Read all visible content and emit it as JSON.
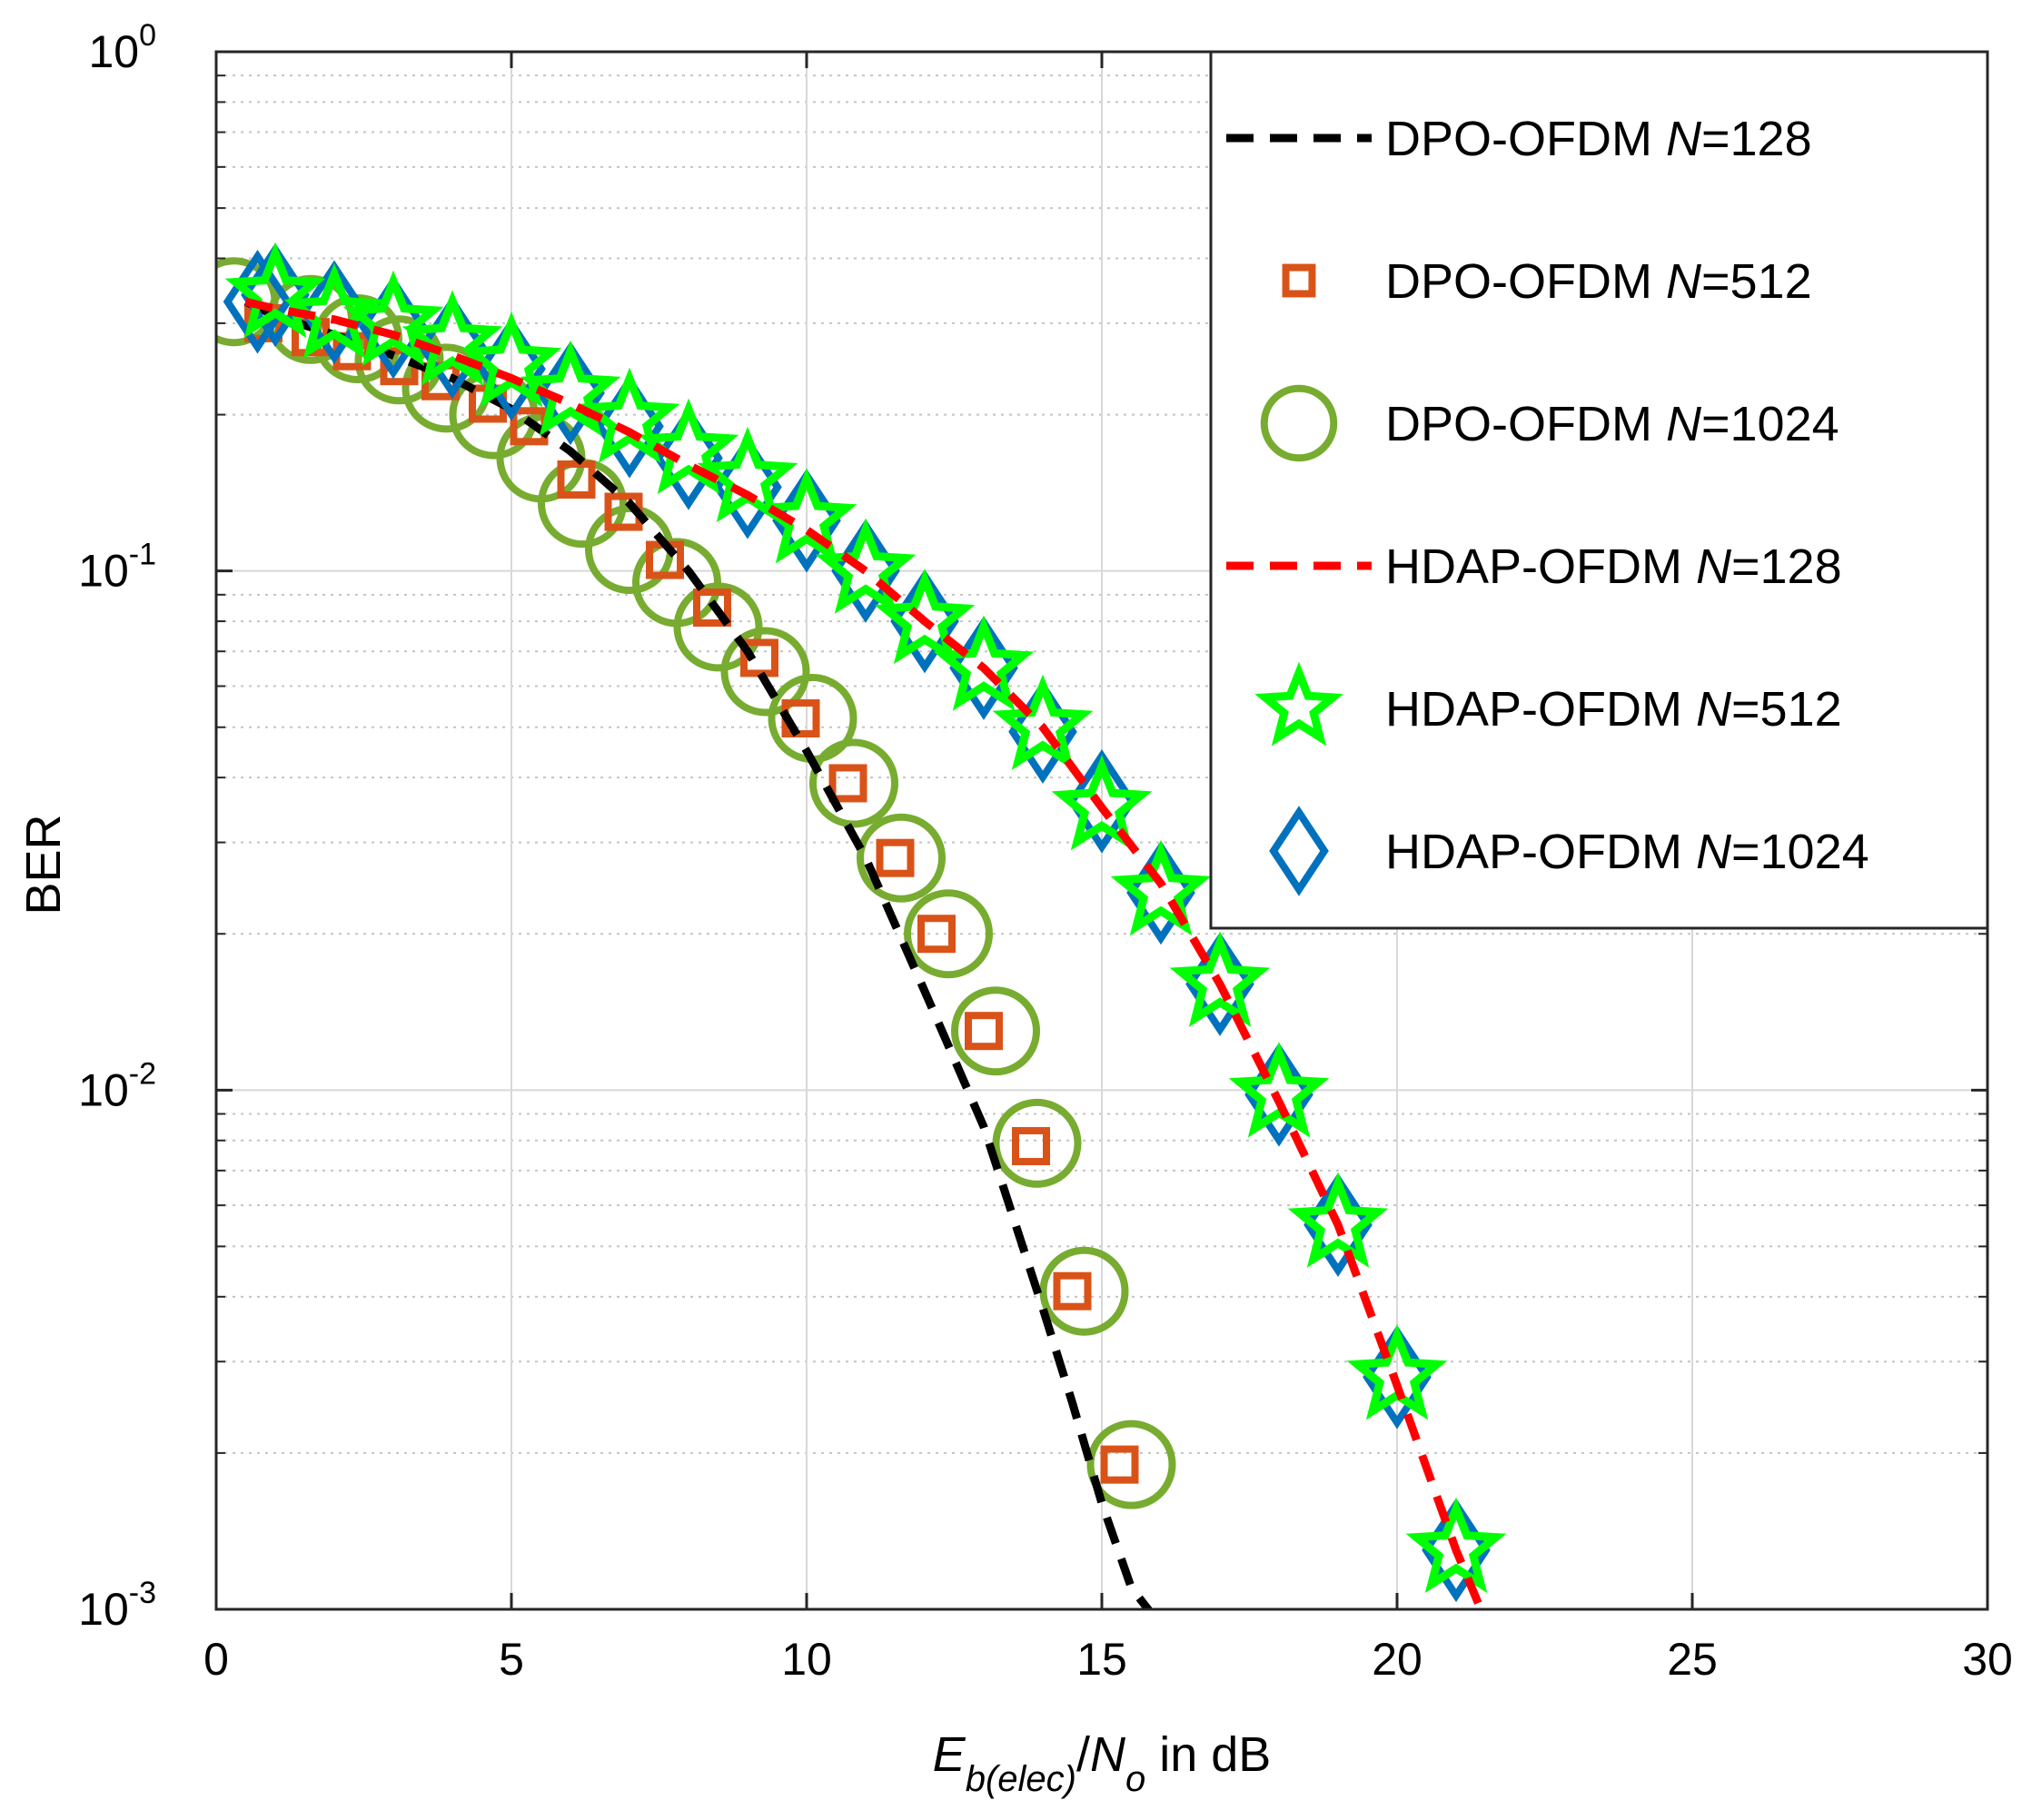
{
  "chart_data": {
    "type": "line",
    "xlabel": {
      "main": "E",
      "sub1": "b(elec)",
      "slash": "/",
      "main2": "N",
      "sub2": "o",
      "suffix": " in dB"
    },
    "ylabel": "BER",
    "xlim": [
      0,
      30
    ],
    "ylim": [
      0.001,
      1
    ],
    "yscale": "log",
    "grid": true,
    "legend_location": "top-right",
    "x_ticks": [
      0,
      5,
      10,
      15,
      20,
      25,
      30
    ],
    "x_tick_labels": [
      "0",
      "5",
      "10",
      "15",
      "20",
      "25",
      "30"
    ],
    "y_ticks": [
      {
        "value": 1,
        "base": "10",
        "exp": "0"
      },
      {
        "value": 0.1,
        "base": "10",
        "exp": "-1"
      },
      {
        "value": 0.01,
        "base": "10",
        "exp": "-2"
      },
      {
        "value": 0.001,
        "base": "10",
        "exp": "-3"
      }
    ],
    "series": [
      {
        "name_prefix": "DPO-OFDM ",
        "name_var": "N",
        "name_suffix": "=128",
        "style": "dashed-line",
        "color": "#000000",
        "x": [
          0.5,
          1,
          2,
          3,
          4,
          5,
          6,
          7,
          8,
          9,
          10,
          11,
          12,
          13,
          14,
          14.5,
          15,
          15.5,
          16
        ],
        "y": [
          0.33,
          0.31,
          0.285,
          0.26,
          0.235,
          0.205,
          0.17,
          0.135,
          0.1,
          0.07,
          0.045,
          0.028,
          0.0155,
          0.0085,
          0.0038,
          0.0025,
          0.0016,
          0.0011,
          0.00093
        ]
      },
      {
        "name_prefix": "DPO-OFDM ",
        "name_var": "N",
        "name_suffix": "=512",
        "style": "square-marker",
        "color": "#d95319",
        "x": [
          0.8,
          1.6,
          2.3,
          3.1,
          3.8,
          4.6,
          5.3,
          6.1,
          6.9,
          7.6,
          8.4,
          9.2,
          9.9,
          10.7,
          11.5,
          12.2,
          13,
          13.8,
          14.5,
          15.3
        ],
        "y": [
          0.3,
          0.282,
          0.265,
          0.248,
          0.232,
          0.21,
          0.19,
          0.15,
          0.13,
          0.105,
          0.085,
          0.068,
          0.052,
          0.039,
          0.028,
          0.02,
          0.013,
          0.0078,
          0.0041,
          0.0019
        ]
      },
      {
        "name_prefix": "DPO-OFDM ",
        "name_var": "N",
        "name_suffix": "=1024",
        "style": "circle-marker",
        "color": "#77ac30",
        "x": [
          0.3,
          1.6,
          2.4,
          3.1,
          3.9,
          4.7,
          5.5,
          6.2,
          7,
          7.8,
          8.5,
          9.3,
          10.1,
          10.8,
          11.6,
          12.4,
          13.2,
          13.9,
          14.7,
          15.5
        ],
        "y": [
          0.33,
          0.305,
          0.28,
          0.255,
          0.225,
          0.2,
          0.165,
          0.135,
          0.11,
          0.095,
          0.078,
          0.064,
          0.052,
          0.039,
          0.028,
          0.02,
          0.013,
          0.0079,
          0.0041,
          0.0019
        ]
      },
      {
        "name_prefix": "HDAP-OFDM ",
        "name_var": "N",
        "name_suffix": "=128",
        "style": "dashed-line",
        "color": "#ff0000",
        "x": [
          0.5,
          1,
          2,
          3,
          4,
          5,
          6,
          7,
          8,
          9,
          10,
          11,
          12,
          13,
          14,
          15,
          16,
          17,
          18,
          19,
          20,
          21,
          21.5
        ],
        "y": [
          0.33,
          0.32,
          0.305,
          0.285,
          0.26,
          0.235,
          0.21,
          0.185,
          0.16,
          0.14,
          0.12,
          0.1,
          0.08,
          0.065,
          0.05,
          0.035,
          0.025,
          0.016,
          0.0095,
          0.0055,
          0.0027,
          0.0013,
          0.00095
        ]
      },
      {
        "name_prefix": "HDAP-OFDM ",
        "name_var": "N",
        "name_suffix": "=512",
        "style": "star-marker",
        "color": "#00ff00",
        "x": [
          1,
          2,
          3,
          4,
          5,
          6,
          7,
          8,
          9,
          10,
          11,
          12,
          13,
          14,
          15,
          16,
          17,
          18,
          19,
          20,
          21
        ],
        "y": [
          0.34,
          0.31,
          0.3,
          0.275,
          0.25,
          0.22,
          0.195,
          0.17,
          0.15,
          0.125,
          0.1,
          0.08,
          0.065,
          0.05,
          0.035,
          0.024,
          0.016,
          0.0098,
          0.0055,
          0.0028,
          0.0013
        ]
      },
      {
        "name_prefix": "HDAP-OFDM ",
        "name_var": "N",
        "name_suffix": "=1024",
        "style": "diamond-marker",
        "color": "#0072bd",
        "x": [
          0.7,
          1,
          2,
          3,
          4,
          5,
          6,
          7,
          8,
          9,
          10,
          11,
          12,
          13,
          14,
          15,
          16,
          17,
          18,
          19,
          20,
          21
        ],
        "y": [
          0.33,
          0.34,
          0.315,
          0.295,
          0.27,
          0.245,
          0.22,
          0.19,
          0.165,
          0.145,
          0.125,
          0.1,
          0.08,
          0.065,
          0.049,
          0.036,
          0.024,
          0.016,
          0.0098,
          0.0055,
          0.0028,
          0.0013
        ]
      }
    ]
  }
}
